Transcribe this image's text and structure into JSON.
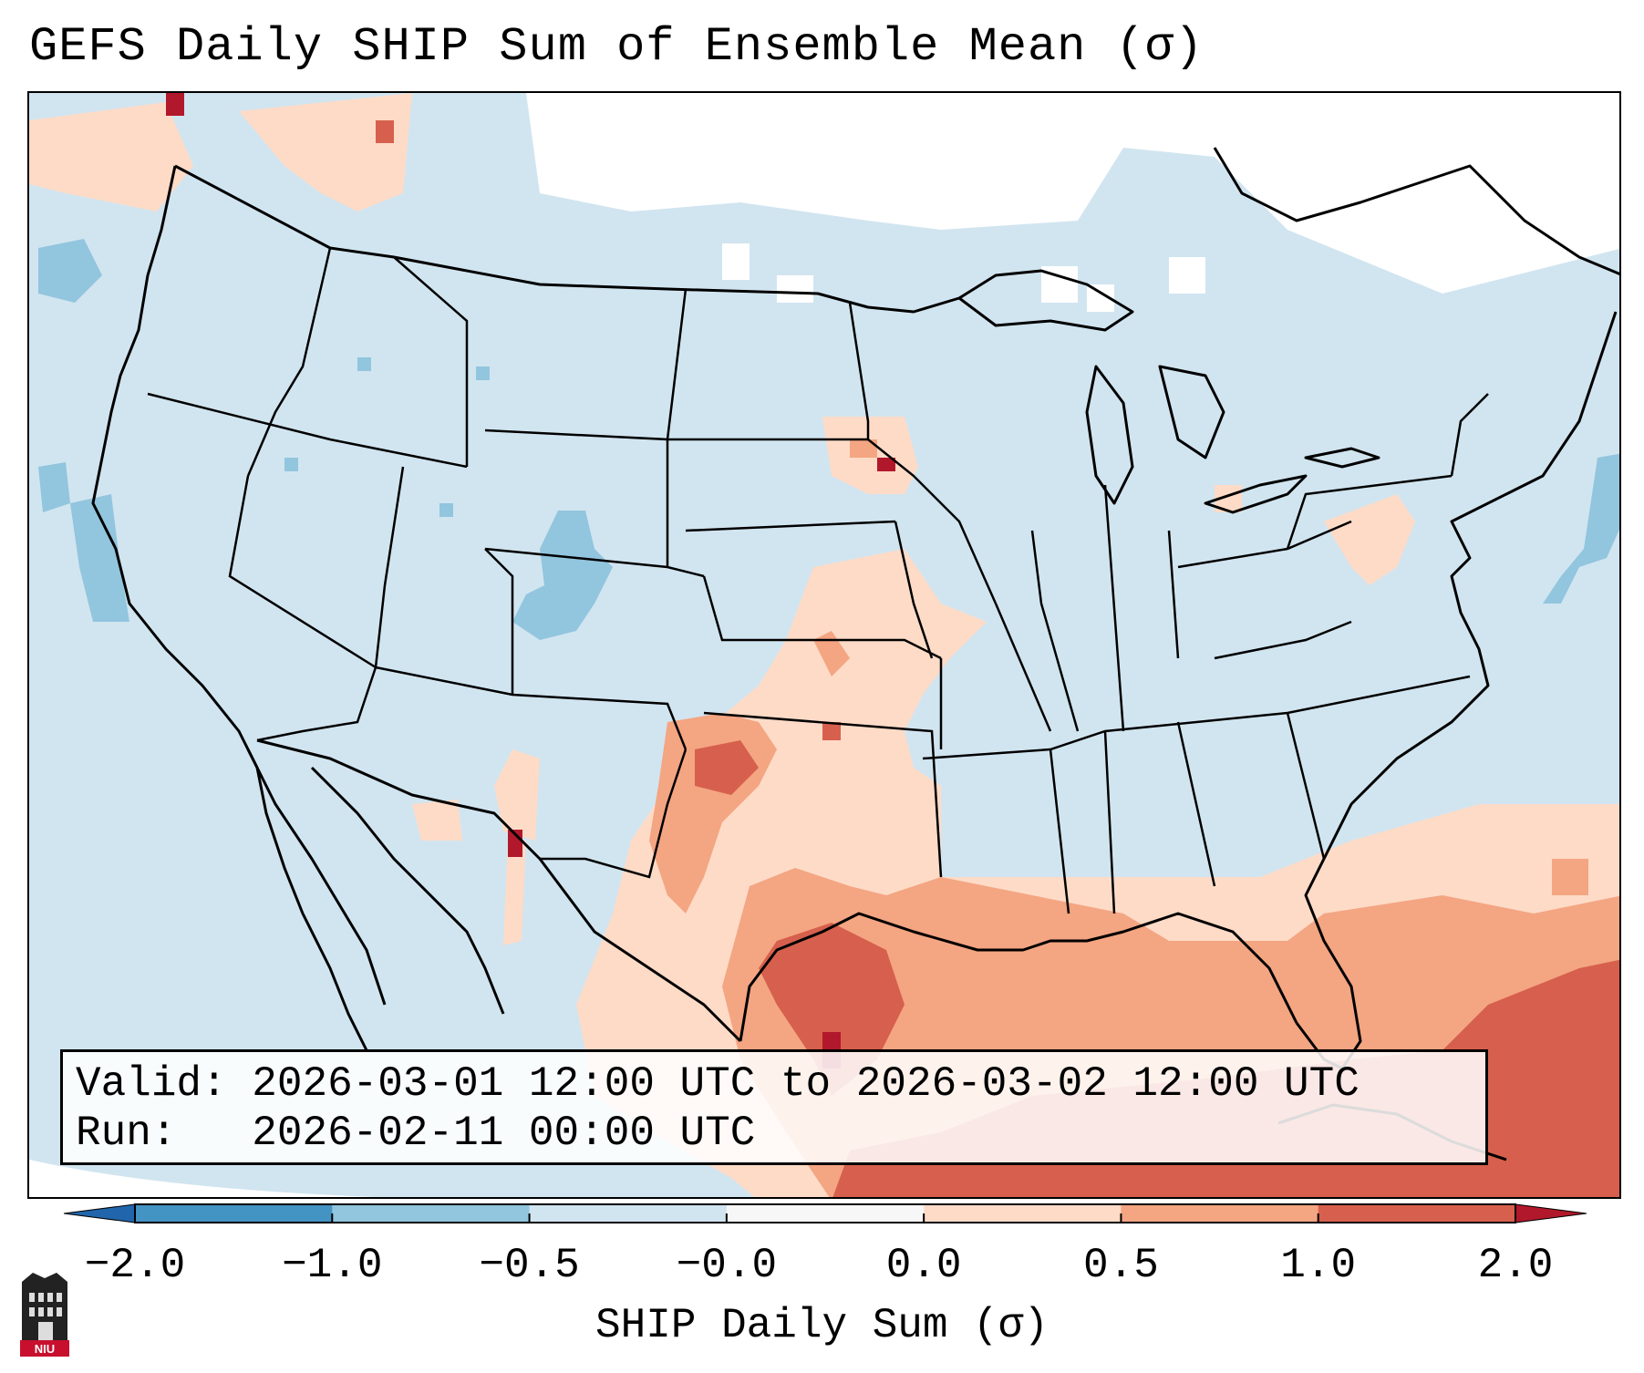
{
  "title": "GEFS Daily SHIP Sum of Ensemble Mean (σ)",
  "info": {
    "valid_label": "Valid:",
    "valid_value": "2026-03-01 12:00 UTC to 2026-03-02 12:00 UTC",
    "run_label": "Run:",
    "run_value": "2026-02-11 00:00 UTC"
  },
  "colorbar": {
    "label": "SHIP Daily Sum (σ)",
    "ticks": [
      "−2.0",
      "−1.0",
      "−0.5",
      "−0.0",
      "0.0",
      "0.5",
      "1.0",
      "2.0"
    ],
    "colors": [
      "#4393c3",
      "#92c5de",
      "#d1e5f0",
      "#f7f7f7",
      "#fddbc7",
      "#f4a582",
      "#d6604d"
    ],
    "extend_low": "#2166ac",
    "extend_high": "#b2182b"
  },
  "logo": {
    "text": "NIU",
    "icon": "niu-building-icon"
  }
}
